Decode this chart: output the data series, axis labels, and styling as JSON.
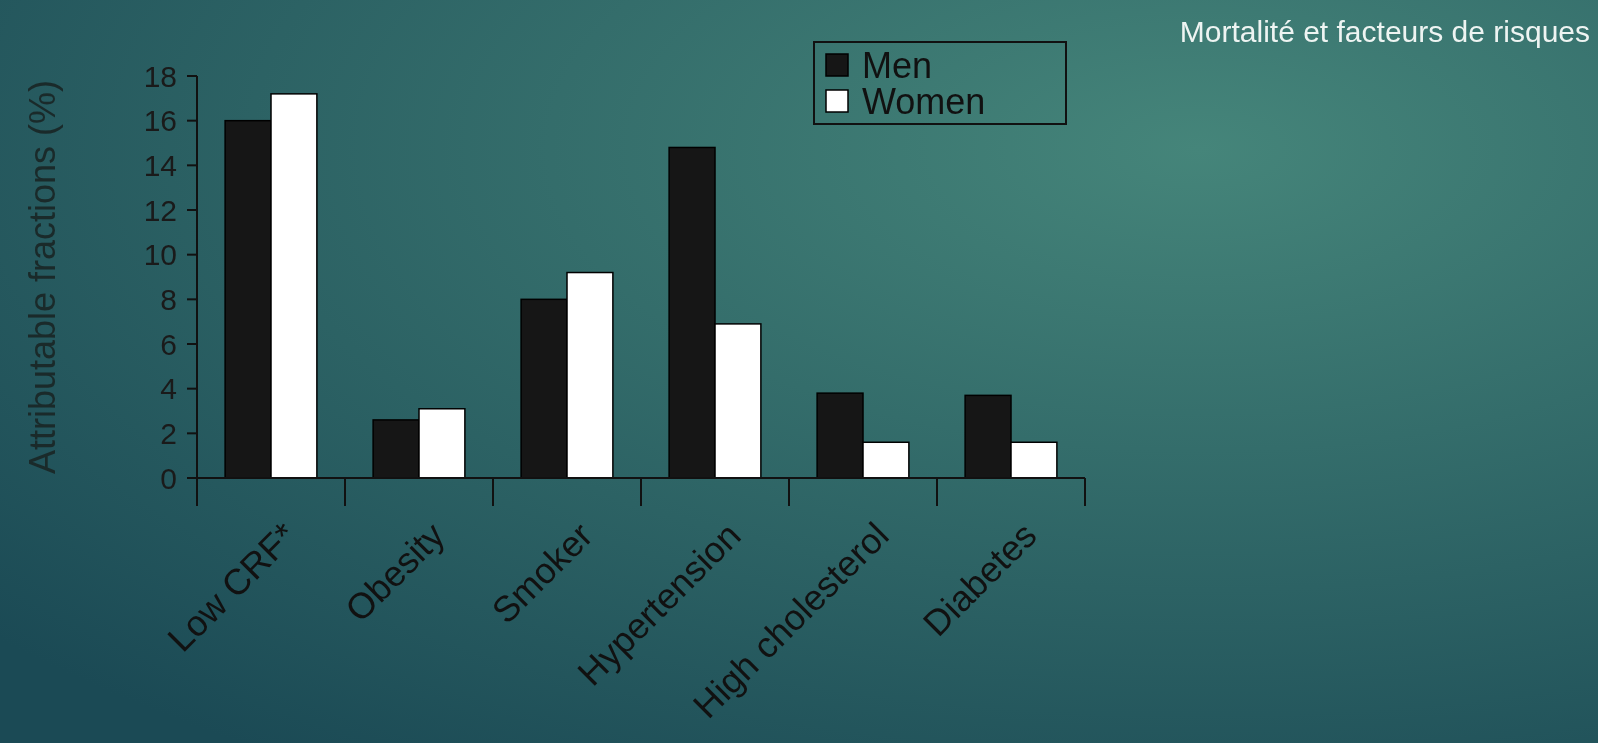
{
  "chart_data": {
    "type": "bar",
    "title": "Mortalité et facteurs de risques",
    "ylabel": "Attributable fractions (%)",
    "categories": [
      "Low CRF*",
      "Obesity",
      "Smoker",
      "Hypertension",
      "High cholesterol",
      "Diabetes"
    ],
    "series": [
      {
        "name": "Men",
        "color": "#161616",
        "values": [
          16.0,
          2.6,
          8.0,
          14.8,
          3.8,
          3.7
        ]
      },
      {
        "name": "Women",
        "color": "#ffffff",
        "values": [
          17.2,
          3.1,
          9.2,
          6.9,
          1.6,
          1.6
        ]
      }
    ],
    "ylim": [
      0,
      18
    ],
    "yticks": [
      0,
      2,
      4,
      6,
      8,
      10,
      12,
      14,
      16,
      18
    ],
    "grid": false,
    "legend": "top right"
  }
}
